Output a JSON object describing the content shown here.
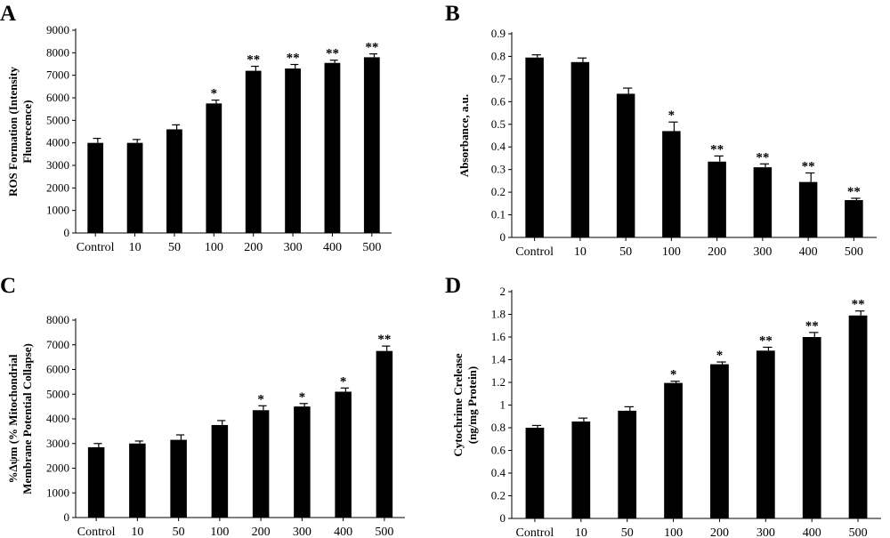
{
  "chart_data": [
    {
      "panel": "A",
      "type": "bar",
      "categories": [
        "Control",
        "10",
        "50",
        "100",
        "200",
        "300",
        "400",
        "500"
      ],
      "values": [
        4000,
        4000,
        4600,
        5750,
        7200,
        7300,
        7550,
        7800
      ],
      "errors": [
        200,
        150,
        200,
        150,
        200,
        180,
        120,
        150
      ],
      "annotations": [
        "",
        "",
        "",
        "*",
        "**",
        "**",
        "**",
        "**"
      ],
      "ylabel": [
        "ROS Formation (Intensity",
        "Fluorecence)"
      ],
      "ylim": [
        0,
        9000
      ],
      "yticks": [
        0,
        1000,
        2000,
        3000,
        4000,
        5000,
        6000,
        7000,
        8000,
        9000
      ],
      "yticklabels": [
        "0",
        "1000",
        "2000",
        "3000",
        "4000",
        "5000",
        "6000",
        "7000",
        "8000",
        "9000"
      ],
      "grid": false
    },
    {
      "panel": "B",
      "type": "bar",
      "categories": [
        "Control",
        "10",
        "50",
        "100",
        "200",
        "300",
        "400",
        "500"
      ],
      "values": [
        0.795,
        0.775,
        0.635,
        0.47,
        0.335,
        0.31,
        0.245,
        0.165
      ],
      "errors": [
        0.012,
        0.018,
        0.025,
        0.04,
        0.025,
        0.015,
        0.04,
        0.008
      ],
      "annotations": [
        "",
        "",
        "",
        "*",
        "**",
        "**",
        "**",
        "**"
      ],
      "ylabel": [
        "Absorbance, a.u."
      ],
      "ylim": [
        0,
        0.9
      ],
      "yticks": [
        0,
        0.1,
        0.2,
        0.3,
        0.4,
        0.5,
        0.6,
        0.7,
        0.8,
        0.9
      ],
      "yticklabels": [
        "0",
        "0.1",
        "0.2",
        "0.3",
        "0.4",
        "0.5",
        "0.6",
        "0.7",
        "0.8",
        "0.9"
      ],
      "grid": false
    },
    {
      "panel": "C",
      "type": "bar",
      "categories": [
        "Control",
        "10",
        "50",
        "100",
        "200",
        "300",
        "400",
        "500"
      ],
      "values": [
        2850,
        3000,
        3150,
        3750,
        4350,
        4500,
        5100,
        6750
      ],
      "errors": [
        150,
        100,
        200,
        180,
        180,
        120,
        150,
        200
      ],
      "annotations": [
        "",
        "",
        "",
        "",
        "*",
        "*",
        "*",
        "**"
      ],
      "ylabel": [
        "%Δψm (% Mitochondrial",
        "Membrane Potential Collapse)"
      ],
      "ylim": [
        0,
        8000
      ],
      "yticks": [
        0,
        1000,
        2000,
        3000,
        4000,
        5000,
        6000,
        7000,
        8000
      ],
      "yticklabels": [
        "0",
        "1000",
        "2000",
        "3000",
        "4000",
        "5000",
        "6000",
        "7000",
        "8000"
      ],
      "grid": false
    },
    {
      "panel": "D",
      "type": "bar",
      "categories": [
        "Control",
        "10",
        "50",
        "100",
        "200",
        "300",
        "400",
        "500"
      ],
      "values": [
        0.8,
        0.855,
        0.95,
        1.195,
        1.36,
        1.48,
        1.6,
        1.79
      ],
      "errors": [
        0.02,
        0.03,
        0.035,
        0.015,
        0.02,
        0.03,
        0.04,
        0.04
      ],
      "annotations": [
        "",
        "",
        "",
        "*",
        "*",
        "**",
        "**",
        "**"
      ],
      "ylabel": [
        "Cytochrime Crelease",
        "(ng/mg Protein)"
      ],
      "ylim": [
        0,
        2
      ],
      "yticks": [
        0,
        0.2,
        0.4,
        0.6,
        0.8,
        1,
        1.2,
        1.4,
        1.6,
        1.8,
        2
      ],
      "yticklabels": [
        "0",
        "0.2",
        "0.4",
        "0.6",
        "0.8",
        "1",
        "1.2",
        "1.4",
        "1.6",
        "1.8",
        "2"
      ],
      "grid": false
    }
  ]
}
